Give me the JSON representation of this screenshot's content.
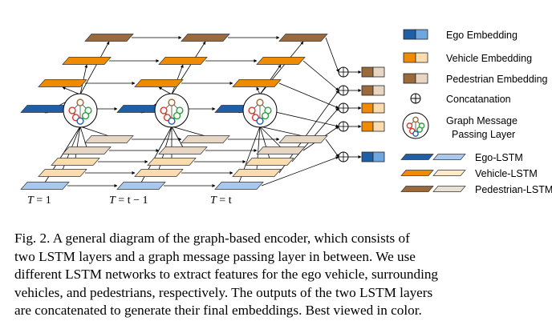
{
  "colors": {
    "ego_dark": "#1f5fa8",
    "ego_light": "#6ea6df",
    "veh_dark": "#f08a00",
    "veh_light": "#fbdcb0",
    "ped_dark": "#9a6a3a",
    "ped_light": "#e7d6c3",
    "lstm_ego_light": "#a9c8ee",
    "lstm_veh_light": "#fde8c8",
    "lstm_ped_light": "#eadfd3"
  },
  "time_steps": [
    {
      "label_italic": "T",
      "label_rest": " = 1"
    },
    {
      "label_italic": "T",
      "label_rest": " = t − 1"
    },
    {
      "label_italic": "T",
      "label_rest": " = t"
    }
  ],
  "legend": {
    "ego_embedding": "Ego Embedding",
    "vehicle_embedding": "Vehicle Embedding",
    "pedestrian_embedding": "Pedestrian Embedding",
    "concatenation": "Concatanation",
    "gmp_line1": "Graph Message",
    "gmp_line2": "Passing Layer",
    "ego_lstm": "Ego-LSTM",
    "vehicle_lstm": "Vehicle-LSTM",
    "pedestrian_lstm": "Pedestrian-LSTM"
  },
  "caption": {
    "lines": [
      "Fig. 2.   A general diagram of the graph-based encoder, which consists of",
      "two LSTM layers and a graph message passing layer in between. We use",
      "different LSTM networks to extract features for the ego vehicle, surrounding",
      "vehicles, and pedestrians, respectively. The outputs of the two LSTM layers",
      "are concatenated to generate their final embeddings. Best viewed in color."
    ]
  }
}
